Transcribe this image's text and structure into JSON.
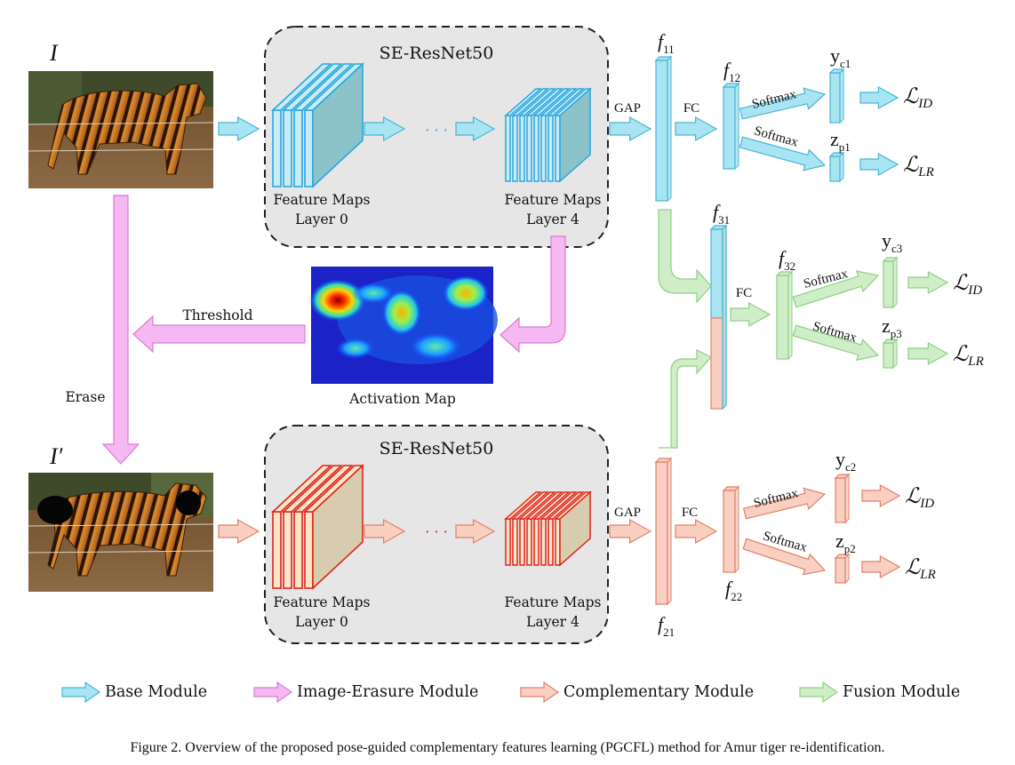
{
  "figure": {
    "caption": "Figure 2. Overview of the proposed pose-guided complementary features learning (PGCFL) method for Amur tiger re-identification."
  },
  "colors": {
    "base": "#a9e4f2",
    "base_stroke": "#45b7d6",
    "erasure": "#f5b8f2",
    "erasure_stroke": "#d47fd2",
    "complementary": "#f8cfc0",
    "complementary_stroke": "#e2806a",
    "fusion": "#cfeec7",
    "fusion_stroke": "#8fcf85",
    "backbone_box": "#e6e6e6",
    "layer_blue_stroke": "#28a8e0",
    "layer_blue_fill": "#c7ecf6",
    "layer_red_stroke": "#e2241c",
    "layer_red_fill": "#fbe7c8"
  },
  "images": {
    "input": "I",
    "erased": "I′"
  },
  "backbone": {
    "title_top": "SE-ResNet50",
    "title_bottom": "SE-ResNet50",
    "layer0_line1": "Feature Maps",
    "layer0_line2": "Layer 0",
    "layer4_line1": "Feature Maps",
    "layer4_line2": "Layer 4",
    "ellipsis": "· · ·"
  },
  "ops": {
    "gap": "GAP",
    "fc": "FC",
    "softmax": "Softmax",
    "threshold": "Threshold",
    "erase": "Erase"
  },
  "activation_map": {
    "label": "Activation Map"
  },
  "features": {
    "f11": {
      "base": "f",
      "sub": "11"
    },
    "f12": {
      "base": "f",
      "sub": "12"
    },
    "f21": {
      "base": "f",
      "sub": "21"
    },
    "f22": {
      "base": "f",
      "sub": "22"
    },
    "f31": {
      "base": "f",
      "sub": "31"
    },
    "f32": {
      "base": "f",
      "sub": "32"
    },
    "yc1": {
      "base": "y",
      "sub": "c1"
    },
    "zp1": {
      "base": "z",
      "sub": "p1"
    },
    "yc2": {
      "base": "y",
      "sub": "c2"
    },
    "zp2": {
      "base": "z",
      "sub": "p2"
    },
    "yc3": {
      "base": "y",
      "sub": "c3"
    },
    "zp3": {
      "base": "z",
      "sub": "p3"
    }
  },
  "losses": {
    "L": "ℒ",
    "id_sub": "ID",
    "lr_sub": "LR"
  },
  "legend": [
    {
      "label": "Base Module",
      "color": "#a9e4f2",
      "stroke": "#45b7d6"
    },
    {
      "label": "Image-Erasure Module",
      "color": "#f5b8f2",
      "stroke": "#d47fd2"
    },
    {
      "label": "Complementary Module",
      "color": "#f8cfc0",
      "stroke": "#e2806a"
    },
    {
      "label": "Fusion Module",
      "color": "#cfeec7",
      "stroke": "#8fcf85"
    }
  ]
}
